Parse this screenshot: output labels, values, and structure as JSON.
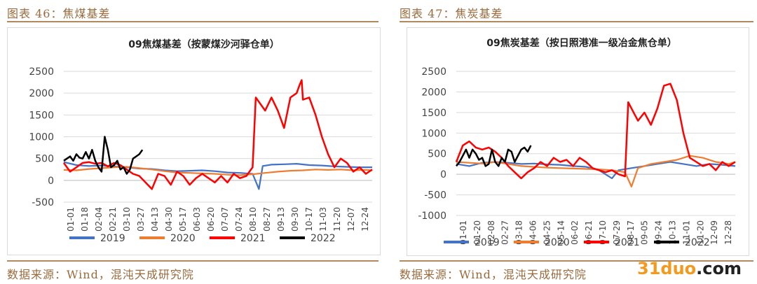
{
  "left": {
    "figure_title": "图表 46：焦煤基差",
    "source": "数据来源：Wind，混沌天成研究院"
  },
  "right": {
    "figure_title": "图表 47：焦炭基差",
    "source": "数据来源：Wind，混沌天成研究院"
  },
  "watermark": {
    "prefix": "31duo",
    "suffix": ".com"
  },
  "colors": {
    "2019": "#4472c4",
    "2020": "#ed7d31",
    "2021": "#ff0000",
    "2022": "#000000"
  },
  "chart_data": [
    {
      "type": "line",
      "title": "09焦煤基差（按蒙煤沙河驿仓单）",
      "ylim": [
        -500,
        2500
      ],
      "yticks": [
        -500,
        0,
        500,
        1000,
        1500,
        2000,
        2500
      ],
      "xticks": [
        "01-01",
        "01-18",
        "02-04",
        "02-21",
        "03-10",
        "03-27",
        "04-13",
        "04-30",
        "05-17",
        "06-03",
        "06-20",
        "07-07",
        "07-24",
        "08-10",
        "08-27",
        "09-13",
        "09-30",
        "10-17",
        "11-03",
        "11-20",
        "12-07",
        "12-24"
      ],
      "grid": true,
      "legend": "bottom",
      "series": [
        {
          "name": "2019",
          "points": [
            [
              0,
              420
            ],
            [
              2,
              350
            ],
            [
              4,
              330
            ],
            [
              6,
              340
            ],
            [
              8,
              320
            ],
            [
              10,
              300
            ],
            [
              12,
              270
            ],
            [
              14,
              260
            ],
            [
              16,
              230
            ],
            [
              18,
              210
            ],
            [
              20,
              220
            ],
            [
              22,
              230
            ],
            [
              24,
              210
            ],
            [
              26,
              180
            ],
            [
              28,
              170
            ],
            [
              30,
              150
            ],
            [
              31,
              -200
            ],
            [
              31.6,
              330
            ],
            [
              33,
              360
            ],
            [
              35,
              370
            ],
            [
              37,
              380
            ],
            [
              39,
              350
            ],
            [
              41,
              340
            ],
            [
              43,
              320
            ],
            [
              45,
              310
            ],
            [
              47,
              300
            ],
            [
              49,
              300
            ]
          ]
        },
        {
          "name": "2020",
          "points": [
            [
              0,
              240
            ],
            [
              2,
              230
            ],
            [
              4,
              260
            ],
            [
              6,
              280
            ],
            [
              8,
              300
            ],
            [
              10,
              310
            ],
            [
              12,
              280
            ],
            [
              14,
              250
            ],
            [
              16,
              210
            ],
            [
              18,
              180
            ],
            [
              20,
              170
            ],
            [
              22,
              160
            ],
            [
              24,
              150
            ],
            [
              26,
              130
            ],
            [
              28,
              120
            ],
            [
              30,
              140
            ],
            [
              32,
              170
            ],
            [
              34,
              200
            ],
            [
              36,
              220
            ],
            [
              38,
              230
            ],
            [
              40,
              250
            ],
            [
              42,
              240
            ],
            [
              44,
              250
            ],
            [
              46,
              230
            ],
            [
              48,
              240
            ],
            [
              49,
              230
            ]
          ]
        },
        {
          "name": "2021",
          "points": [
            [
              0,
              400
            ],
            [
              1,
              200
            ],
            [
              2,
              300
            ],
            [
              3,
              400
            ],
            [
              4,
              420
            ],
            [
              5,
              380
            ],
            [
              6,
              400
            ],
            [
              7,
              320
            ],
            [
              8,
              400
            ],
            [
              9,
              350
            ],
            [
              10,
              250
            ],
            [
              11,
              150
            ],
            [
              12,
              100
            ],
            [
              13,
              -50
            ],
            [
              14,
              -200
            ],
            [
              15,
              150
            ],
            [
              16,
              100
            ],
            [
              17,
              -100
            ],
            [
              18,
              200
            ],
            [
              19,
              100
            ],
            [
              20,
              -100
            ],
            [
              21,
              50
            ],
            [
              22,
              150
            ],
            [
              24,
              -50
            ],
            [
              25,
              100
            ],
            [
              26,
              -50
            ],
            [
              27,
              150
            ],
            [
              28,
              50
            ],
            [
              29,
              100
            ],
            [
              30,
              300
            ],
            [
              30.5,
              1900
            ],
            [
              31,
              1800
            ],
            [
              32,
              1600
            ],
            [
              33,
              1900
            ],
            [
              34,
              1600
            ],
            [
              35,
              1200
            ],
            [
              36,
              1900
            ],
            [
              37,
              2000
            ],
            [
              37.5,
              2200
            ],
            [
              37.8,
              2300
            ],
            [
              38,
              1850
            ],
            [
              39,
              1900
            ],
            [
              40,
              1500
            ],
            [
              41,
              1000
            ],
            [
              42,
              600
            ],
            [
              43,
              300
            ],
            [
              44,
              500
            ],
            [
              45,
              400
            ],
            [
              46,
              200
            ],
            [
              47,
              300
            ],
            [
              48,
              150
            ],
            [
              49,
              250
            ]
          ]
        },
        {
          "name": "2022",
          "points": [
            [
              0,
              450
            ],
            [
              0.5,
              500
            ],
            [
              1,
              550
            ],
            [
              1.5,
              450
            ],
            [
              2,
              600
            ],
            [
              2.5,
              520
            ],
            [
              3,
              500
            ],
            [
              3.5,
              650
            ],
            [
              4,
              500
            ],
            [
              4.5,
              700
            ],
            [
              5,
              450
            ],
            [
              5.5,
              300
            ],
            [
              6,
              200
            ],
            [
              6.5,
              1000
            ],
            [
              7,
              700
            ],
            [
              7.5,
              300
            ],
            [
              8,
              350
            ],
            [
              8.5,
              450
            ],
            [
              9,
              250
            ],
            [
              9.5,
              300
            ],
            [
              10,
              150
            ],
            [
              10.5,
              250
            ],
            [
              11,
              500
            ],
            [
              11.5,
              550
            ],
            [
              12,
              600
            ],
            [
              12.5,
              700
            ]
          ]
        }
      ]
    },
    {
      "type": "line",
      "title": "09焦炭基差（按日照港准一级冶金焦仓单）",
      "ylim": [
        -1000,
        2500
      ],
      "yticks": [
        -1000,
        -500,
        0,
        500,
        1000,
        1500,
        2000,
        2500
      ],
      "xticks": [
        "01-01",
        "01-20",
        "02-08",
        "02-27",
        "03-18",
        "04-06",
        "04-25",
        "05-14",
        "06-02",
        "06-21",
        "07-10",
        "07-29",
        "08-17",
        "09-05",
        "09-24",
        "10-13",
        "11-01",
        "11-20",
        "12-09",
        "12-28"
      ],
      "grid": true,
      "legend": "bottom",
      "series": [
        {
          "name": "2019",
          "points": [
            [
              0,
              250
            ],
            [
              2,
              200
            ],
            [
              4,
              280
            ],
            [
              6,
              300
            ],
            [
              8,
              280
            ],
            [
              10,
              250
            ],
            [
              12,
              260
            ],
            [
              14,
              240
            ],
            [
              16,
              230
            ],
            [
              18,
              200
            ],
            [
              20,
              180
            ],
            [
              22,
              100
            ],
            [
              24,
              -100
            ],
            [
              25,
              100
            ],
            [
              27,
              150
            ],
            [
              29,
              200
            ],
            [
              31,
              250
            ],
            [
              33,
              300
            ],
            [
              35,
              250
            ],
            [
              37,
              200
            ],
            [
              39,
              250
            ],
            [
              41,
              230
            ],
            [
              43,
              200
            ]
          ]
        },
        {
          "name": "2020",
          "points": [
            [
              0,
              300
            ],
            [
              2,
              280
            ],
            [
              4,
              260
            ],
            [
              6,
              300
            ],
            [
              8,
              250
            ],
            [
              10,
              200
            ],
            [
              12,
              180
            ],
            [
              14,
              160
            ],
            [
              16,
              150
            ],
            [
              18,
              140
            ],
            [
              20,
              130
            ],
            [
              22,
              120
            ],
            [
              24,
              100
            ],
            [
              26,
              50
            ],
            [
              27,
              -300
            ],
            [
              28,
              150
            ],
            [
              30,
              250
            ],
            [
              32,
              300
            ],
            [
              34,
              350
            ],
            [
              36,
              450
            ],
            [
              38,
              400
            ],
            [
              40,
              300
            ],
            [
              42,
              250
            ],
            [
              43,
              300
            ]
          ]
        },
        {
          "name": "2021",
          "points": [
            [
              0,
              300
            ],
            [
              1,
              700
            ],
            [
              2,
              800
            ],
            [
              3,
              650
            ],
            [
              4,
              600
            ],
            [
              5,
              650
            ],
            [
              6,
              550
            ],
            [
              7,
              400
            ],
            [
              8,
              200
            ],
            [
              9,
              50
            ],
            [
              10,
              -100
            ],
            [
              11,
              50
            ],
            [
              12,
              150
            ],
            [
              13,
              300
            ],
            [
              14,
              200
            ],
            [
              15,
              400
            ],
            [
              16,
              300
            ],
            [
              17,
              350
            ],
            [
              18,
              200
            ],
            [
              19,
              400
            ],
            [
              20,
              300
            ],
            [
              21,
              150
            ],
            [
              22,
              100
            ],
            [
              23,
              50
            ],
            [
              24,
              100
            ],
            [
              25,
              0
            ],
            [
              26,
              -50
            ],
            [
              26.5,
              1750
            ],
            [
              27,
              1600
            ],
            [
              28,
              1300
            ],
            [
              29,
              1500
            ],
            [
              30,
              1200
            ],
            [
              31,
              1600
            ],
            [
              32,
              2150
            ],
            [
              33,
              2200
            ],
            [
              34,
              1800
            ],
            [
              35,
              1000
            ],
            [
              36,
              400
            ],
            [
              37,
              300
            ],
            [
              38,
              200
            ],
            [
              39,
              250
            ],
            [
              40,
              100
            ],
            [
              41,
              300
            ],
            [
              42,
              200
            ],
            [
              43,
              300
            ]
          ]
        },
        {
          "name": "2022",
          "points": [
            [
              0,
              200
            ],
            [
              0.5,
              300
            ],
            [
              1,
              450
            ],
            [
              1.5,
              600
            ],
            [
              2,
              400
            ],
            [
              2.5,
              600
            ],
            [
              3,
              500
            ],
            [
              3.5,
              350
            ],
            [
              4,
              400
            ],
            [
              4.5,
              200
            ],
            [
              5,
              250
            ],
            [
              5.5,
              600
            ],
            [
              6,
              300
            ],
            [
              6.5,
              200
            ],
            [
              7,
              400
            ],
            [
              7.5,
              300
            ],
            [
              8,
              600
            ],
            [
              8.5,
              550
            ],
            [
              9,
              300
            ],
            [
              9.5,
              450
            ],
            [
              10,
              600
            ],
            [
              10.5,
              650
            ],
            [
              11,
              550
            ],
            [
              11.5,
              700
            ]
          ]
        }
      ]
    }
  ]
}
